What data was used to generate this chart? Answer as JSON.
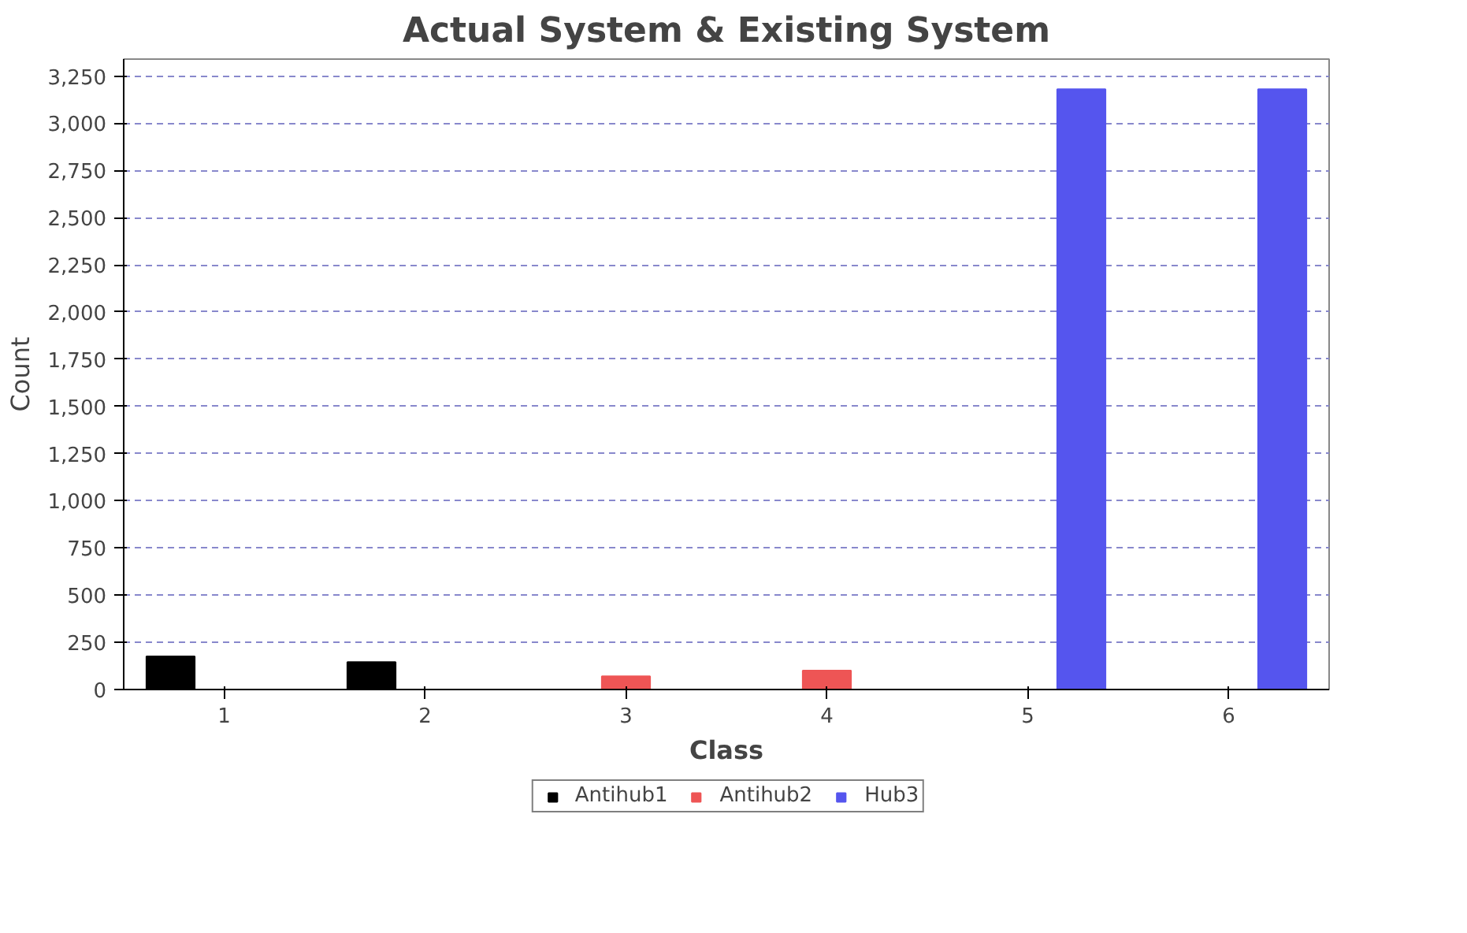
{
  "chart_data": {
    "type": "bar",
    "title": "Actual System & Existing System",
    "xlabel": "Class",
    "ylabel": "Count",
    "categories": [
      "1",
      "2",
      "3",
      "4",
      "5",
      "6"
    ],
    "series": [
      {
        "name": "Antihub1",
        "color": "#000000",
        "values": [
          175,
          145,
          null,
          null,
          null,
          null
        ]
      },
      {
        "name": "Antihub2",
        "color": "#ee5555",
        "values": [
          null,
          null,
          70,
          100,
          null,
          null
        ]
      },
      {
        "name": "Hub3",
        "color": "#5555ee",
        "values": [
          null,
          null,
          null,
          null,
          3180,
          3180
        ]
      }
    ],
    "ylim": [
      0,
      3340
    ],
    "yticks": [
      0,
      250,
      500,
      750,
      {
        "value": 1000,
        "label": "1,000"
      },
      {
        "value": 1250,
        "label": "1,250"
      },
      {
        "value": 1500,
        "label": "1,500"
      },
      {
        "value": 1750,
        "label": "1,750"
      },
      {
        "value": 2000,
        "label": "2,000"
      },
      {
        "value": 2250,
        "label": "2,250"
      },
      {
        "value": 2500,
        "label": "2,500"
      },
      {
        "value": 2750,
        "label": "2,750"
      },
      {
        "value": 3000,
        "label": "3,000"
      },
      {
        "value": 3250,
        "label": "3,250"
      }
    ],
    "grid": "y",
    "legend": "bottom"
  }
}
